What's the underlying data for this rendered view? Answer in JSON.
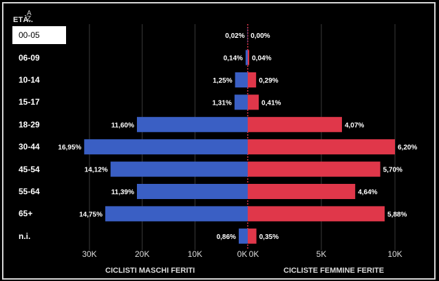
{
  "header": {
    "age_label": "ETÀ..",
    "sort_icon": "sort-az-icon"
  },
  "selected_age": "00-05",
  "colors": {
    "male": "#3a5fc4",
    "female": "#e0374a",
    "grid": "#3a3a3a",
    "text": "#ffffff"
  },
  "chart_data": {
    "type": "bar",
    "orientation": "horizontal-population-pyramid",
    "categories": [
      "00-05",
      "06-09",
      "10-14",
      "15-17",
      "18-29",
      "30-44",
      "45-54",
      "55-64",
      "65+",
      "n.i."
    ],
    "series": [
      {
        "name": "CICLISTI MASCHI FERITI",
        "side": "left",
        "values": [
          50,
          400,
          2400,
          2500,
          21000,
          31000,
          26000,
          21000,
          27000,
          1700
        ],
        "labels": [
          "0,02%",
          "0,14%",
          "1,25%",
          "1,31%",
          "11,60%",
          "16,95%",
          "14,12%",
          "11,39%",
          "14,75%",
          "0,86%"
        ]
      },
      {
        "name": "CICLISTE FEMMINE FERITE",
        "side": "right",
        "values": [
          10,
          100,
          570,
          750,
          6400,
          10000,
          9000,
          7300,
          9300,
          590
        ],
        "labels": [
          "0,00%",
          "0,04%",
          "0,29%",
          "0,41%",
          "4,07%",
          "6,20%",
          "5,70%",
          "4,64%",
          "5,88%",
          "0,35%"
        ]
      }
    ],
    "left_axis": {
      "min": 0,
      "max": 35000,
      "ticks": [
        30000,
        20000,
        10000,
        0
      ],
      "tick_labels": [
        "30K",
        "20K",
        "10K",
        "0K"
      ]
    },
    "right_axis": {
      "min": 0,
      "max": 10500,
      "ticks": [
        0,
        5000,
        10000
      ],
      "tick_labels": [
        "0K",
        "5K",
        "10K"
      ]
    },
    "xlabel_left": "CICLISTI MASCHI FERITI",
    "xlabel_right": "CICLISTE FEMMINE FERITE",
    "grid": true
  }
}
